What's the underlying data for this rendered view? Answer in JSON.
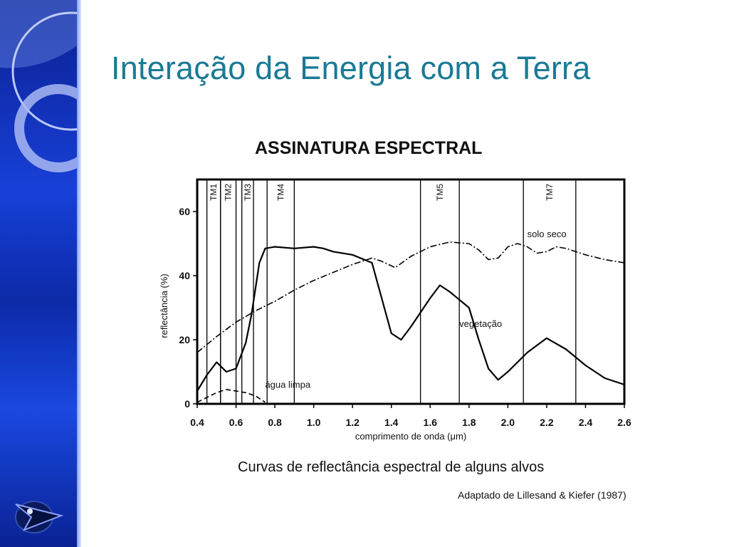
{
  "slide": {
    "title": "Interação da Energia com a Terra"
  },
  "chart_data": {
    "type": "line",
    "title": "ASSINATURA ESPECTRAL",
    "caption": "Curvas de reflectância espectral de alguns alvos",
    "source": "Adaptado de Lillesand & Kiefer (1987)",
    "xlabel": "comprimento de onda (μm)",
    "ylabel": "reflectância (%)",
    "xlim": [
      0.4,
      2.6
    ],
    "ylim": [
      0,
      70
    ],
    "xticks": [
      "0.4",
      "0.6",
      "0.8",
      "1.0",
      "1.2",
      "1.4",
      "1.6",
      "1.8",
      "2.0",
      "2.2",
      "2.4",
      "2.6"
    ],
    "xtick_values": [
      0.4,
      0.6,
      0.8,
      1.0,
      1.2,
      1.4,
      1.6,
      1.8,
      2.0,
      2.2,
      2.4,
      2.6
    ],
    "yticks": [
      "0",
      "20",
      "40",
      "60"
    ],
    "ytick_values": [
      0,
      20,
      40,
      60
    ],
    "grid": false,
    "bands": [
      {
        "name": "TM1",
        "start": 0.45,
        "end": 0.52
      },
      {
        "name": "TM2",
        "start": 0.52,
        "end": 0.6
      },
      {
        "name": "TM3",
        "start": 0.63,
        "end": 0.69
      },
      {
        "name": "TM4",
        "start": 0.76,
        "end": 0.9
      },
      {
        "name": "TM5",
        "start": 1.55,
        "end": 1.75
      },
      {
        "name": "TM7",
        "start": 2.08,
        "end": 2.35
      }
    ],
    "series": [
      {
        "name": "solo seco",
        "style": "dash-dot",
        "label_at": [
          2.1,
          52
        ],
        "x": [
          0.4,
          0.5,
          0.6,
          0.7,
          0.8,
          0.9,
          1.0,
          1.1,
          1.2,
          1.3,
          1.35,
          1.42,
          1.5,
          1.6,
          1.7,
          1.8,
          1.85,
          1.9,
          1.95,
          2.0,
          2.05,
          2.1,
          2.15,
          2.2,
          2.25,
          2.3,
          2.4,
          2.5,
          2.6
        ],
        "y": [
          16,
          21,
          25.5,
          29,
          32,
          35.5,
          38.5,
          41,
          43.5,
          45.5,
          44.5,
          42.5,
          46,
          49,
          50.5,
          50,
          48,
          45,
          45.5,
          49,
          50,
          49,
          47,
          47.5,
          49,
          48.5,
          46.5,
          45,
          44
        ]
      },
      {
        "name": "vegetação",
        "style": "solid",
        "label_at": [
          1.75,
          24
        ],
        "x": [
          0.4,
          0.45,
          0.5,
          0.55,
          0.6,
          0.65,
          0.68,
          0.72,
          0.75,
          0.8,
          0.9,
          1.0,
          1.05,
          1.1,
          1.2,
          1.3,
          1.35,
          1.4,
          1.45,
          1.5,
          1.6,
          1.65,
          1.7,
          1.8,
          1.85,
          1.9,
          1.95,
          2.0,
          2.1,
          2.2,
          2.3,
          2.4,
          2.5,
          2.6
        ],
        "y": [
          4,
          9,
          13,
          10,
          11,
          19,
          28,
          44,
          48.5,
          49,
          48.5,
          49,
          48.5,
          47.5,
          46.5,
          44,
          33,
          22,
          20,
          24,
          33,
          37,
          35,
          30,
          20,
          11,
          7.5,
          10,
          16,
          20.5,
          17,
          12,
          8,
          6
        ]
      },
      {
        "name": "água limpa",
        "style": "dashed",
        "label_at": [
          0.75,
          5
        ],
        "x": [
          0.4,
          0.45,
          0.5,
          0.55,
          0.6,
          0.65,
          0.7,
          0.75
        ],
        "y": [
          0.5,
          2,
          3.5,
          4.5,
          4,
          3.5,
          2.5,
          0.5
        ]
      }
    ]
  }
}
